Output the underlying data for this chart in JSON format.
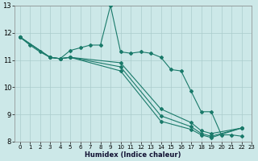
{
  "xlabel": "Humidex (Indice chaleur)",
  "xlim": [
    -0.5,
    23
  ],
  "ylim": [
    8,
    13
  ],
  "xticks": [
    0,
    1,
    2,
    3,
    4,
    5,
    6,
    7,
    8,
    9,
    10,
    11,
    12,
    13,
    14,
    15,
    16,
    17,
    18,
    19,
    20,
    21,
    22,
    23
  ],
  "yticks": [
    8,
    9,
    10,
    11,
    12,
    13
  ],
  "bg_color": "#cce8e8",
  "line_color": "#1a7a6a",
  "grid_color": "#aacccc",
  "line1_x": [
    0,
    1,
    2,
    3,
    4,
    5,
    6,
    7,
    8,
    9,
    10,
    11,
    12,
    13,
    14,
    15,
    16,
    17,
    18,
    19,
    20,
    21,
    22
  ],
  "line1_y": [
    11.85,
    11.55,
    11.3,
    11.1,
    11.05,
    11.35,
    11.45,
    11.55,
    11.55,
    13.0,
    11.3,
    11.25,
    11.3,
    11.25,
    11.1,
    10.65,
    10.6,
    9.85,
    9.1,
    9.1,
    8.25,
    8.25,
    8.2
  ],
  "line2_x": [
    0,
    3,
    4,
    5,
    10,
    14,
    17,
    18,
    19,
    22
  ],
  "line2_y": [
    11.85,
    11.1,
    11.05,
    11.1,
    10.9,
    9.2,
    8.7,
    8.4,
    8.3,
    8.5
  ],
  "line3_x": [
    0,
    3,
    4,
    5,
    10,
    14,
    17,
    18,
    19,
    22
  ],
  "line3_y": [
    11.85,
    11.1,
    11.05,
    11.1,
    10.75,
    8.95,
    8.55,
    8.3,
    8.2,
    8.5
  ],
  "line4_x": [
    0,
    3,
    4,
    5,
    10,
    14,
    17,
    18,
    19,
    22
  ],
  "line4_y": [
    11.85,
    11.1,
    11.05,
    11.1,
    10.6,
    8.75,
    8.45,
    8.25,
    8.15,
    8.5
  ]
}
